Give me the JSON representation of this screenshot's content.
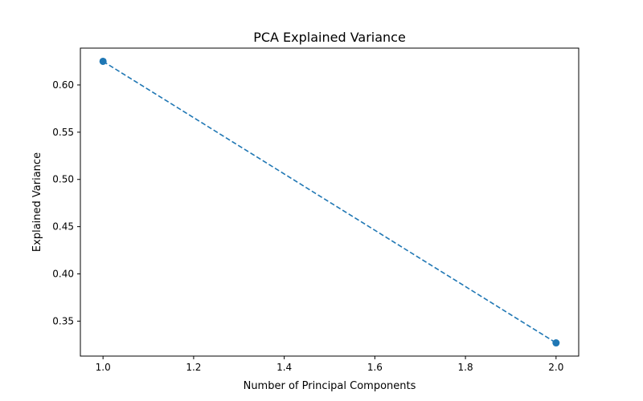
{
  "chart_data": {
    "type": "line",
    "title": "PCA Explained Variance",
    "xlabel": "Number of Principal Components",
    "ylabel": "Explained Variance",
    "series": [
      {
        "name": "Explained Variance",
        "x": [
          1,
          2
        ],
        "y": [
          0.625,
          0.327
        ],
        "line_style": "dashed",
        "marker": "circle"
      }
    ],
    "xlim": [
      0.95,
      2.05
    ],
    "ylim": [
      0.313,
      0.639
    ],
    "xticks": [
      1.0,
      1.2,
      1.4,
      1.6,
      1.8,
      2.0
    ],
    "xtick_labels": [
      "1.0",
      "1.2",
      "1.4",
      "1.6",
      "1.8",
      "2.0"
    ],
    "yticks": [
      0.35,
      0.4,
      0.45,
      0.5,
      0.55,
      0.6
    ],
    "ytick_labels": [
      "0.35",
      "0.40",
      "0.45",
      "0.50",
      "0.55",
      "0.60"
    ],
    "grid": false,
    "color": "#1f77b4"
  }
}
